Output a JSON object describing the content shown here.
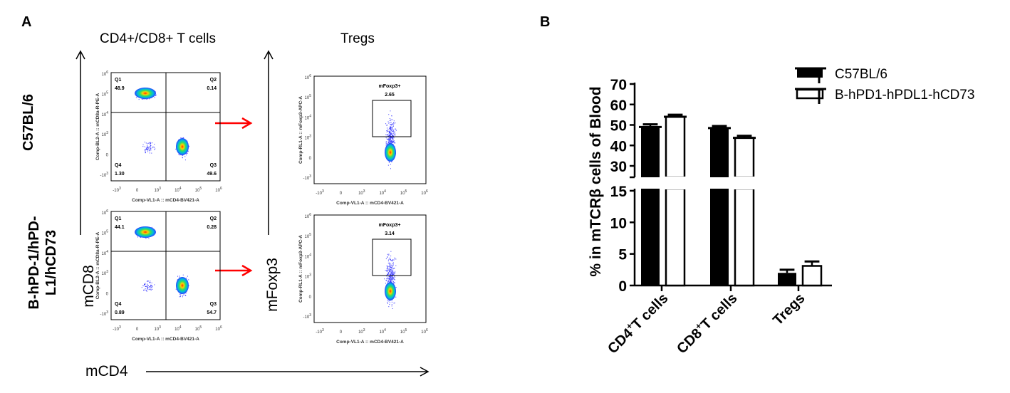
{
  "panel_a": {
    "letter": "A",
    "col_titles": [
      "CD4+/CD8+ T cells",
      "Tregs"
    ],
    "row_labels": [
      "C57BL/6",
      "B-hPD-1/hPD-\nL1/hCD73"
    ],
    "y_axis_labels": [
      "mCD8",
      "mFoxp3"
    ],
    "x_axis_label": "mCD4",
    "flow_plots": [
      {
        "x_label": "Comp-VL1-A :: mCD4-BV421-A",
        "y_label": "Comp-BL2-A :: mCD8a-R-PE-A",
        "gates": [
          {
            "name": "Q1",
            "value": "48.9"
          },
          {
            "name": "Q2",
            "value": "0.14"
          },
          {
            "name": "Q3",
            "value": "49.6"
          },
          {
            "name": "Q4",
            "value": "1.30"
          }
        ]
      },
      {
        "x_label": "Comp-VL1-A :: mCD4-BV421-A",
        "y_label": "Comp-RL1-A :: mFoxp3-APC-A",
        "gates": [
          {
            "name": "mFoxp3+",
            "value": "2.65"
          }
        ]
      },
      {
        "x_label": "Comp-VL1-A :: mCD4-BV421-A",
        "y_label": "Comp-BL2-A :: mCD8a-R-PE-A",
        "gates": [
          {
            "name": "Q1",
            "value": "44.1"
          },
          {
            "name": "Q2",
            "value": "0.28"
          },
          {
            "name": "Q3",
            "value": "54.7"
          },
          {
            "name": "Q4",
            "value": "0.89"
          }
        ]
      },
      {
        "x_label": "Comp-VL1-A :: mCD4-BV421-A",
        "y_label": "Comp-RL1-A :: mFoxp3-APC-A",
        "gates": [
          {
            "name": "mFoxp3+",
            "value": "3.14"
          }
        ]
      }
    ],
    "flow_axis_ticks": [
      "-10^3",
      "0",
      "10^3",
      "10^4",
      "10^5",
      "10^6"
    ],
    "arrow_color": "#ff0000"
  },
  "chart_data": {
    "letter": "B",
    "type": "bar",
    "categories": [
      "CD4+T cells",
      "CD8+T cells",
      "Tregs"
    ],
    "series": [
      {
        "name": "C57BL/6",
        "values": [
          49,
          48.5,
          2.0
        ],
        "error": [
          1.3,
          1.0,
          0.5
        ],
        "fill": "#000000"
      },
      {
        "name": "B-hPD1-hPDL1-hCD73",
        "values": [
          54,
          43.7,
          3.1
        ],
        "error": [
          1.0,
          1.0,
          0.7
        ],
        "fill": "#ffffff"
      }
    ],
    "ylabel": "% in mTCRβ cells of Blood",
    "xlabel": "",
    "broken_axis": true,
    "ylim_lower": [
      0,
      15
    ],
    "ylim_upper": [
      25,
      70
    ],
    "yticks_lower": [
      0,
      5,
      10,
      15
    ],
    "yticks_upper": [
      30,
      40,
      50,
      60,
      70
    ],
    "legend_position": "top-right",
    "grid": false
  }
}
